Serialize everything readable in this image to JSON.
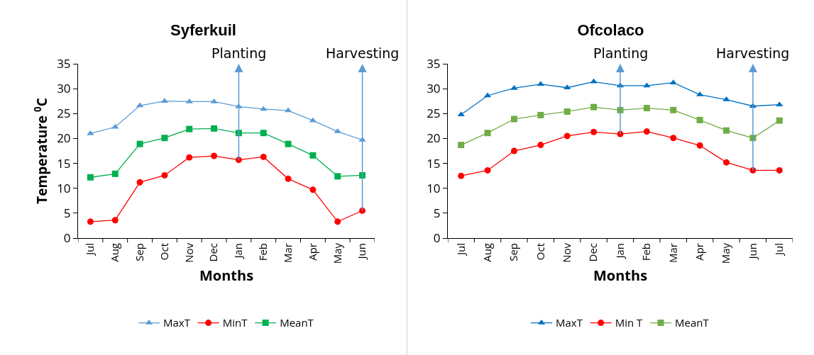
{
  "chart_data": [
    {
      "type": "line",
      "title": "Syferkuil",
      "xlabel": "Months",
      "ylabel": "Temperature $^{0}$C",
      "categories": [
        "Jul",
        "Aug",
        "Sep",
        "Oct",
        "Nov",
        "Dec",
        "Jan",
        "Feb",
        "Mar",
        "Apr",
        "May",
        "Jun"
      ],
      "series": [
        {
          "name": "MaxT",
          "color": "#5b9bd5",
          "marker": "triangle",
          "values": [
            21,
            22.3,
            26.6,
            27.5,
            27.4,
            27.4,
            26.4,
            25.9,
            25.6,
            23.6,
            21.4,
            19.7
          ]
        },
        {
          "name": "MinT",
          "color": "#ff0000",
          "marker": "circle",
          "values": [
            3.3,
            3.6,
            11.2,
            12.6,
            16.2,
            16.5,
            15.7,
            16.3,
            11.9,
            9.7,
            3.3,
            5.5
          ]
        },
        {
          "name": "MeanT",
          "color": "#00b050",
          "marker": "square",
          "values": [
            12.2,
            12.9,
            18.9,
            20.1,
            21.9,
            22,
            21.1,
            21.1,
            18.9,
            16.6,
            12.4,
            12.6
          ]
        }
      ],
      "ref_lines": [
        {
          "axis": "x",
          "value": "Jan",
          "label": "Planting",
          "color": "#5b9bd5"
        },
        {
          "axis": "x",
          "value": "Jun",
          "label": "Harvesting",
          "color": "#5b9bd5"
        }
      ],
      "ylim": [
        0,
        35
      ],
      "yticks": [
        0,
        5,
        10,
        15,
        20,
        25,
        30,
        35
      ],
      "grid": false,
      "legend": "bottom"
    },
    {
      "type": "line",
      "title": "Ofcolaco",
      "xlabel": "Months",
      "categories": [
        "Jul",
        "Aug",
        "Sep",
        "Oct",
        "Nov",
        "Dec",
        "Jan",
        "Feb",
        "Mar",
        "Apr",
        "May",
        "Jun",
        "Jul"
      ],
      "series": [
        {
          "name": "MaxT",
          "color": "#0070c0",
          "marker": "triangle",
          "values": [
            24.8,
            28.6,
            30.1,
            30.9,
            30.2,
            31.4,
            30.6,
            30.6,
            31.2,
            28.8,
            27.8,
            26.5,
            26.8
          ]
        },
        {
          "name": "Min T",
          "color": "#ff0000",
          "marker": "circle",
          "values": [
            12.5,
            13.6,
            17.5,
            18.7,
            20.5,
            21.3,
            20.9,
            21.4,
            20.1,
            18.6,
            15.2,
            13.6,
            13.6
          ]
        },
        {
          "name": "MeanT",
          "color": "#70ad47",
          "marker": "square",
          "values": [
            18.7,
            21.1,
            23.9,
            24.7,
            25.4,
            26.3,
            25.7,
            26.1,
            25.7,
            23.7,
            21.6,
            20.1,
            23.6
          ]
        }
      ],
      "ref_lines": [
        {
          "axis": "x",
          "value": "Jan",
          "label": "Planting",
          "color": "#5b9bd5"
        },
        {
          "axis": "x",
          "value": "Jun",
          "label": "Harvesting",
          "color": "#5b9bd5"
        }
      ],
      "ylim": [
        0,
        35
      ],
      "yticks": [
        0,
        5,
        10,
        15,
        20,
        25,
        30,
        35
      ],
      "grid": false,
      "legend": "bottom"
    }
  ]
}
